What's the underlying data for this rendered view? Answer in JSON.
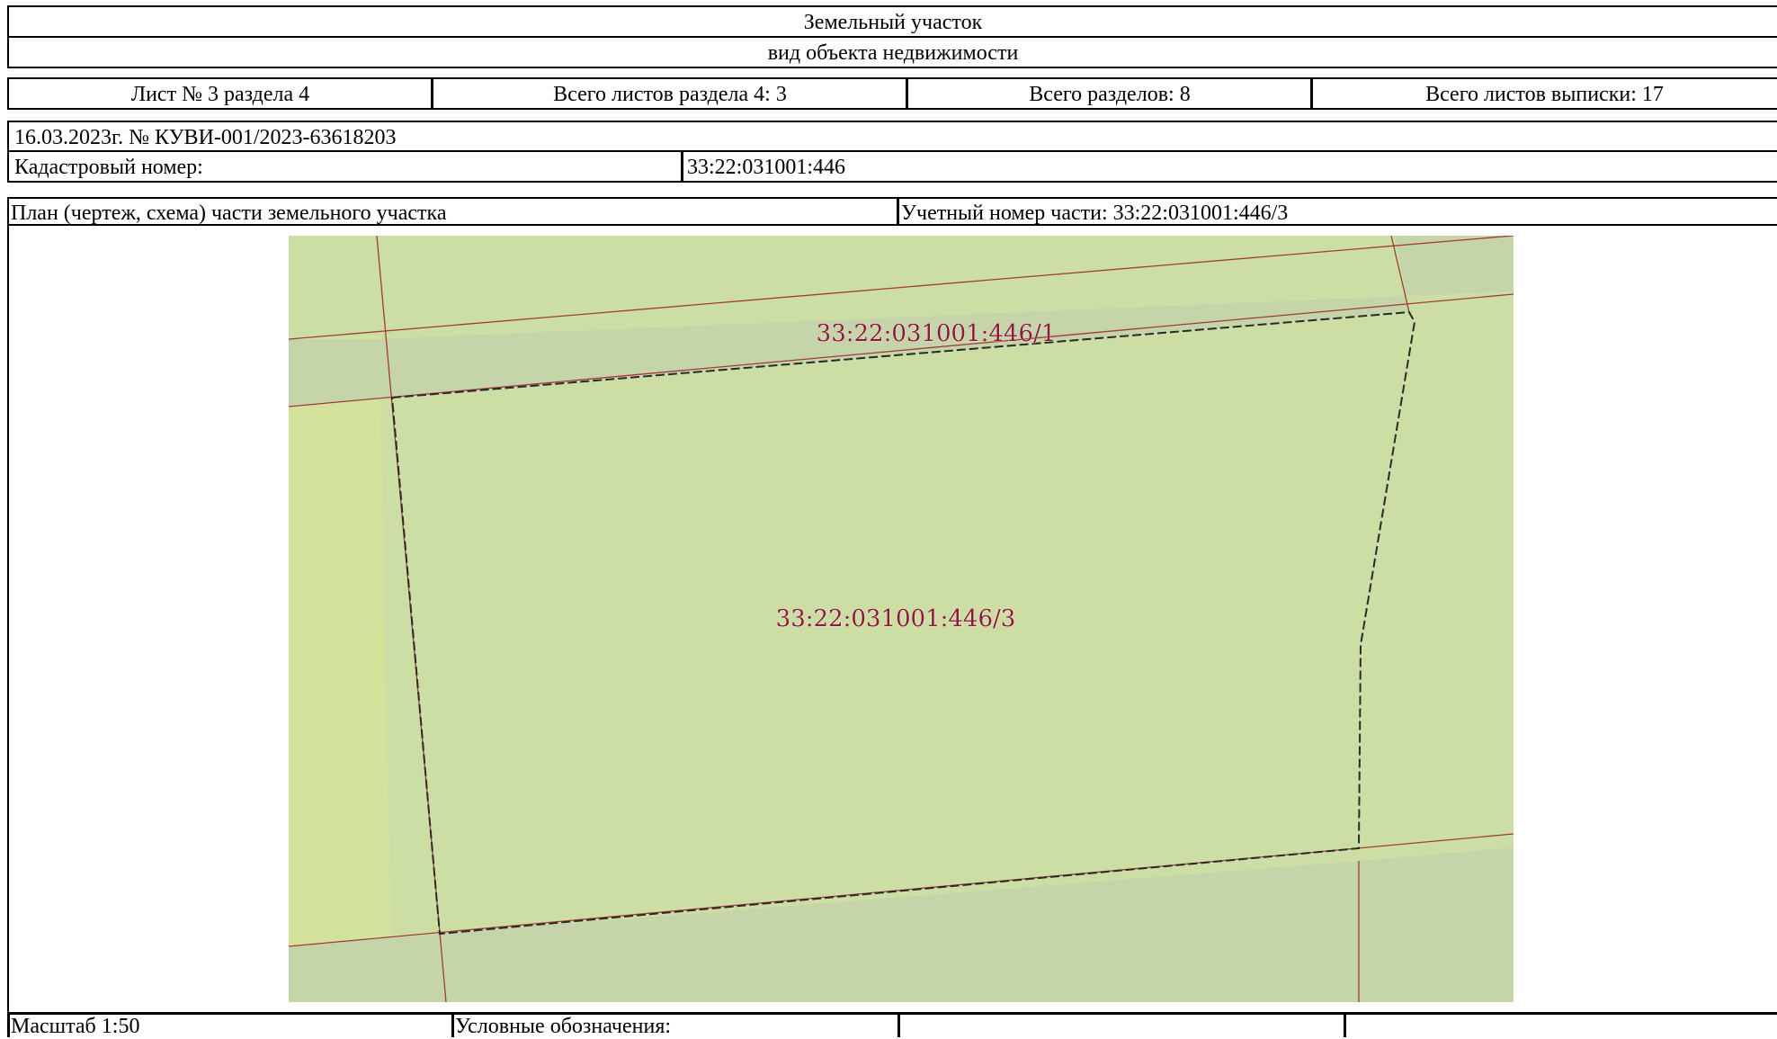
{
  "header": {
    "object_type": "Земельный участок",
    "object_type_caption": "вид объекта недвижимости"
  },
  "sheet_info": {
    "sheet_no": "Лист № 3 раздела 4",
    "sheets_in_section": "Всего листов раздела 4: 3",
    "total_sections": "Всего разделов: 8",
    "total_sheets": "Всего листов выписки: 17"
  },
  "document": {
    "date_number": "16.03.2023г. № КУВИ-001/2023-63618203",
    "cadastral_label": "Кадастровый номер:",
    "cadastral_value": "33:22:031001:446"
  },
  "plan": {
    "title": "План (чертеж, схема) части земельного участка",
    "part_number": "Учетный номер части: 33:22:031001:446/3",
    "map_labels": {
      "part_1": "33:22:031001:446/1",
      "part_3": "33:22:031001:446/3"
    },
    "colors": {
      "parcel_fill": "#cddea5",
      "neighbor_fill": "#d3e39b",
      "strip_fill": "#c6d4a9",
      "boundary_red": "#a33a3a",
      "label_color": "#8c1a3a"
    }
  },
  "footer": {
    "scale": "Масштаб 1:50",
    "legend": "Условные обозначения:"
  }
}
